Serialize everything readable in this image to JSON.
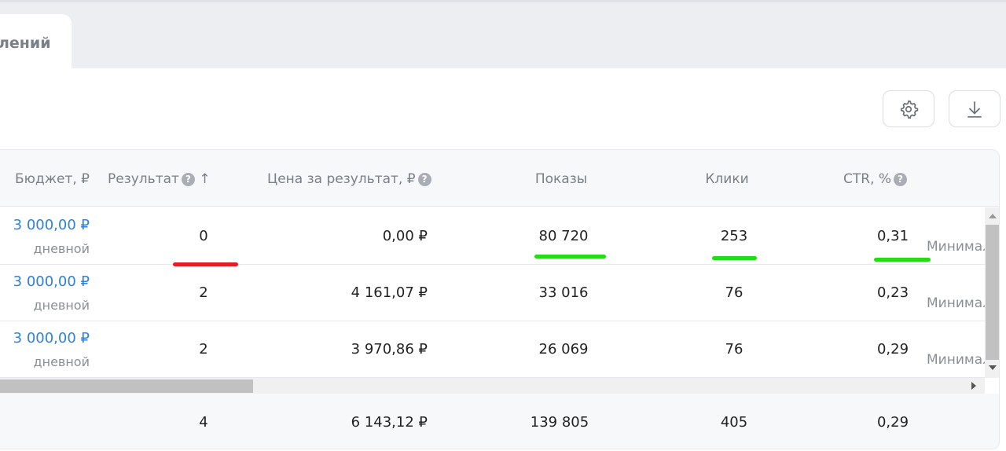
{
  "tab": {
    "label": "лений"
  },
  "toolbar": {
    "settings_icon": "gear-icon",
    "download_icon": "download-icon"
  },
  "table": {
    "headers": {
      "budget": "Бюджет, ₽",
      "result": "Результат",
      "result_sort": "↑",
      "price": "Цена за результат, ₽",
      "shows": "Показы",
      "clicks": "Клики",
      "ctr": "CTR, %",
      "help": "?"
    },
    "rows": [
      {
        "budget": "3 000,00 ₽",
        "budget_type": "дневной",
        "result": "0",
        "price": "0,00 ₽",
        "shows": "80 720",
        "clicks": "253",
        "ctr": "0,31",
        "next": "Минимал"
      },
      {
        "budget": "3 000,00 ₽",
        "budget_type": "дневной",
        "result": "2",
        "price": "4 161,07 ₽",
        "shows": "33 016",
        "clicks": "76",
        "ctr": "0,23",
        "next": "Минимал"
      },
      {
        "budget": "3 000,00 ₽",
        "budget_type": "дневной",
        "result": "2",
        "price": "3 970,86 ₽",
        "shows": "26 069",
        "clicks": "76",
        "ctr": "0,29",
        "next": "Минимал"
      }
    ],
    "totals": {
      "result": "4",
      "price": "6 143,12 ₽",
      "shows": "139 805",
      "clicks": "405",
      "ctr": "0,29"
    }
  },
  "annotations": {
    "red": "#e02020",
    "green": "#22dd11"
  }
}
